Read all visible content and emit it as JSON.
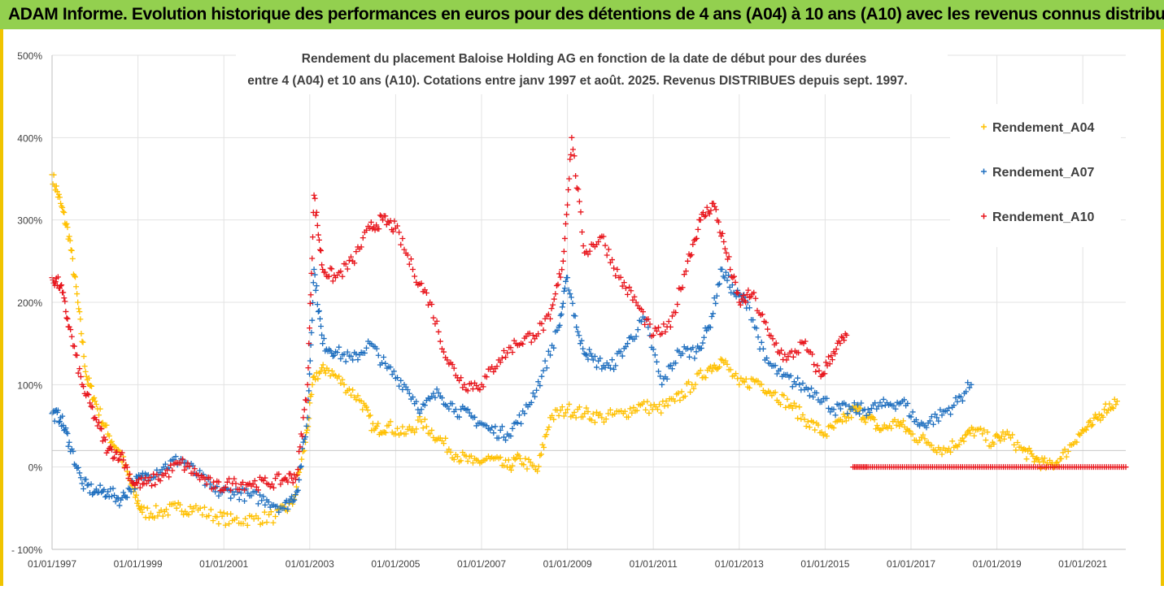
{
  "banner": {
    "title": "ADAM Informe. Evolution historique des performances en euros pour des détentions de 4 ans (A04) à 10 ans (A10) avec les revenus connus distribués"
  },
  "chart_data": {
    "type": "scatter",
    "title_line1": "Rendement du placement Baloise Holding AG en fonction de la date de début pour des durées",
    "title_line2": "entre 4 (A04) et 10 ans (A10). Cotations entre janv 1997 et août. 2025. Revenus DISTRIBUES depuis sept. 1997.",
    "ylim": [
      -100,
      500
    ],
    "yticks": [
      -100,
      0,
      100,
      200,
      300,
      400,
      500
    ],
    "ytick_labels": [
      "- 100%",
      "0%",
      "100%",
      "200%",
      "300%",
      "400%",
      "500%"
    ],
    "xlim": [
      1997.0,
      2022.0
    ],
    "xticks": [
      1997,
      1999,
      2001,
      2003,
      2005,
      2007,
      2009,
      2011,
      2013,
      2015,
      2017,
      2019,
      2021
    ],
    "xtick_labels": [
      "01/01/1997",
      "01/01/1999",
      "01/01/2001",
      "01/01/2003",
      "01/01/2005",
      "01/01/2007",
      "01/01/2009",
      "01/01/2011",
      "01/01/2013",
      "01/01/2015",
      "01/01/2017",
      "01/01/2019",
      "01/01/2021"
    ],
    "reference_line_y": 20,
    "grid": true,
    "legend_position": "top-right",
    "series": [
      {
        "name": "Rendement_A04",
        "color": "#ffc000",
        "x": [
          1997.0,
          1997.2,
          1997.4,
          1997.6,
          1997.8,
          1998.0,
          1998.3,
          1998.6,
          1998.9,
          1999.1,
          1999.5,
          1999.9,
          2000.3,
          2000.8,
          2001.2,
          2001.7,
          2002.2,
          2002.6,
          2002.9,
          2003.1,
          2003.4,
          2003.8,
          2004.2,
          2004.5,
          2004.8,
          2005.2,
          2005.6,
          2006.0,
          2006.4,
          2006.8,
          2007.2,
          2007.6,
          2007.9,
          2008.3,
          2008.6,
          2009.0,
          2009.4,
          2009.8,
          2010.3,
          2010.7,
          2011.1,
          2011.5,
          2011.9,
          2012.3,
          2012.6,
          2013.0,
          2013.4,
          2013.8,
          2014.2,
          2014.6,
          2015.0,
          2015.4,
          2015.7,
          2016.0,
          2016.3,
          2016.7,
          2017.0,
          2017.4,
          2017.8,
          2018.2,
          2018.5,
          2018.9,
          2019.2,
          2019.6,
          2019.9,
          2020.2,
          2020.5,
          2020.9,
          2021.2,
          2021.5,
          2021.8
        ],
        "y": [
          355,
          320,
          280,
          200,
          110,
          80,
          40,
          15,
          -30,
          -55,
          -55,
          -50,
          -50,
          -60,
          -65,
          -63,
          -60,
          -45,
          30,
          110,
          120,
          100,
          80,
          45,
          50,
          40,
          55,
          35,
          15,
          5,
          10,
          0,
          10,
          -5,
          60,
          70,
          65,
          60,
          65,
          75,
          70,
          80,
          100,
          120,
          130,
          100,
          105,
          90,
          75,
          55,
          40,
          55,
          70,
          60,
          45,
          55,
          40,
          30,
          20,
          35,
          45,
          30,
          40,
          20,
          10,
          0,
          10,
          40,
          50,
          70,
          80
        ]
      },
      {
        "name": "Rendement_A07",
        "color": "#1f6fbf",
        "x": [
          1997.0,
          1997.2,
          1997.4,
          1997.7,
          1998.0,
          1998.3,
          1998.6,
          1998.9,
          1999.2,
          1999.6,
          2000.0,
          2000.4,
          2000.8,
          2001.2,
          2001.6,
          2002.0,
          2002.4,
          2002.7,
          2002.95,
          2003.1,
          2003.3,
          2003.6,
          2004.0,
          2004.4,
          2004.8,
          2005.2,
          2005.6,
          2006.0,
          2006.4,
          2006.8,
          2007.2,
          2007.6,
          2008.0,
          2008.4,
          2008.8,
          2009.0,
          2009.3,
          2009.6,
          2010.0,
          2010.4,
          2010.8,
          2011.2,
          2011.6,
          2012.0,
          2012.3,
          2012.6,
          2012.9,
          2013.2,
          2013.6,
          2014.0,
          2014.4,
          2014.8,
          2015.2,
          2015.6,
          2016.0,
          2016.4,
          2016.8,
          2017.2,
          2017.6,
          2018.0,
          2018.4
        ],
        "y": [
          65,
          60,
          30,
          -20,
          -30,
          -30,
          -40,
          -20,
          -10,
          0,
          10,
          -10,
          -30,
          -30,
          -35,
          -40,
          -50,
          -30,
          60,
          240,
          150,
          140,
          130,
          150,
          120,
          100,
          70,
          90,
          70,
          60,
          45,
          40,
          65,
          110,
          170,
          230,
          150,
          130,
          120,
          150,
          180,
          100,
          140,
          140,
          170,
          240,
          210,
          200,
          130,
          110,
          100,
          90,
          70,
          70,
          70,
          75,
          80,
          50,
          60,
          75,
          100
        ]
      },
      {
        "name": "Rendement_A10",
        "color": "#e8141b",
        "x": [
          1997.0,
          1997.2,
          1997.4,
          1997.7,
          1998.0,
          1998.3,
          1998.6,
          1998.9,
          1999.2,
          1999.6,
          2000.0,
          2000.4,
          2000.8,
          2001.2,
          2001.6,
          2002.0,
          2002.4,
          2002.7,
          2002.95,
          2003.1,
          2003.3,
          2003.6,
          2004.0,
          2004.4,
          2004.7,
          2005.0,
          2005.4,
          2005.8,
          2006.2,
          2006.6,
          2007.0,
          2007.4,
          2007.8,
          2008.2,
          2008.6,
          2008.9,
          2009.1,
          2009.4,
          2009.8,
          2010.2,
          2010.6,
          2011.0,
          2011.4,
          2011.8,
          2012.1,
          2012.4,
          2012.7,
          2013.0,
          2013.3,
          2013.7,
          2014.1,
          2014.5,
          2014.9,
          2015.2,
          2015.5
        ],
        "y": [
          230,
          220,
          170,
          100,
          60,
          20,
          15,
          -20,
          -20,
          -10,
          5,
          -10,
          -25,
          -20,
          -20,
          -20,
          -15,
          -10,
          100,
          330,
          240,
          230,
          250,
          290,
          300,
          290,
          240,
          200,
          130,
          100,
          100,
          130,
          150,
          160,
          180,
          250,
          400,
          260,
          280,
          230,
          200,
          160,
          170,
          250,
          300,
          320,
          260,
          200,
          210,
          160,
          130,
          150,
          110,
          140,
          160
        ]
      },
      {
        "name": "",
        "color": "#e8141b",
        "x": [
          2015.65,
          2016.0,
          2016.5,
          2017.0,
          2017.5,
          2018.0,
          2018.5,
          2019.0,
          2019.5,
          2020.0,
          2020.5,
          2021.0,
          2021.5,
          2022.0
        ],
        "y": [
          0,
          0,
          0,
          0,
          0,
          0,
          0,
          0,
          0,
          0,
          0,
          0,
          0,
          0
        ]
      }
    ]
  }
}
